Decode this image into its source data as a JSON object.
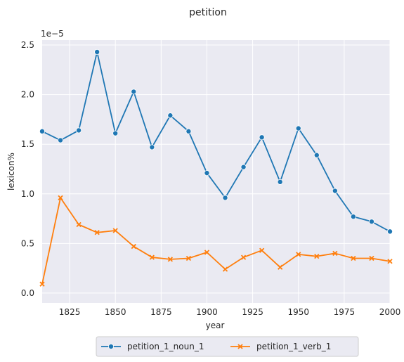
{
  "chart_data": {
    "type": "line",
    "title": "petition",
    "xlabel": "year",
    "ylabel": "lexicon%",
    "y_scale_label": "1e−5",
    "xlim": [
      1810,
      2000
    ],
    "ylim": [
      -0.1,
      2.55
    ],
    "x_ticks": [
      1825,
      1850,
      1875,
      1900,
      1925,
      1950,
      1975,
      2000
    ],
    "y_ticks": [
      0.0,
      0.5,
      1.0,
      1.5,
      2.0,
      2.5
    ],
    "y_tick_labels": [
      "0.0",
      "0.5",
      "1.0",
      "1.5",
      "2.0",
      "2.5"
    ],
    "grid": true,
    "legend_position": "bottom-center",
    "x": [
      1810,
      1820,
      1830,
      1840,
      1850,
      1860,
      1870,
      1880,
      1890,
      1900,
      1910,
      1920,
      1930,
      1940,
      1950,
      1960,
      1970,
      1980,
      1990,
      2000
    ],
    "series": [
      {
        "name": "petition_1_noun_1",
        "color": "#1f77b4",
        "marker": "circle",
        "values": [
          1.63,
          1.54,
          1.64,
          2.43,
          1.61,
          2.03,
          1.47,
          1.79,
          1.63,
          1.21,
          0.96,
          1.27,
          1.57,
          1.12,
          1.66,
          1.39,
          1.03,
          0.77,
          0.72,
          0.62
        ]
      },
      {
        "name": "petition_1_verb_1",
        "color": "#ff7f0e",
        "marker": "x",
        "values": [
          0.09,
          0.96,
          0.69,
          0.61,
          0.63,
          0.47,
          0.36,
          0.34,
          0.35,
          0.41,
          0.24,
          0.36,
          0.43,
          0.26,
          0.39,
          0.37,
          0.4,
          0.35,
          0.35,
          0.32
        ]
      }
    ]
  }
}
